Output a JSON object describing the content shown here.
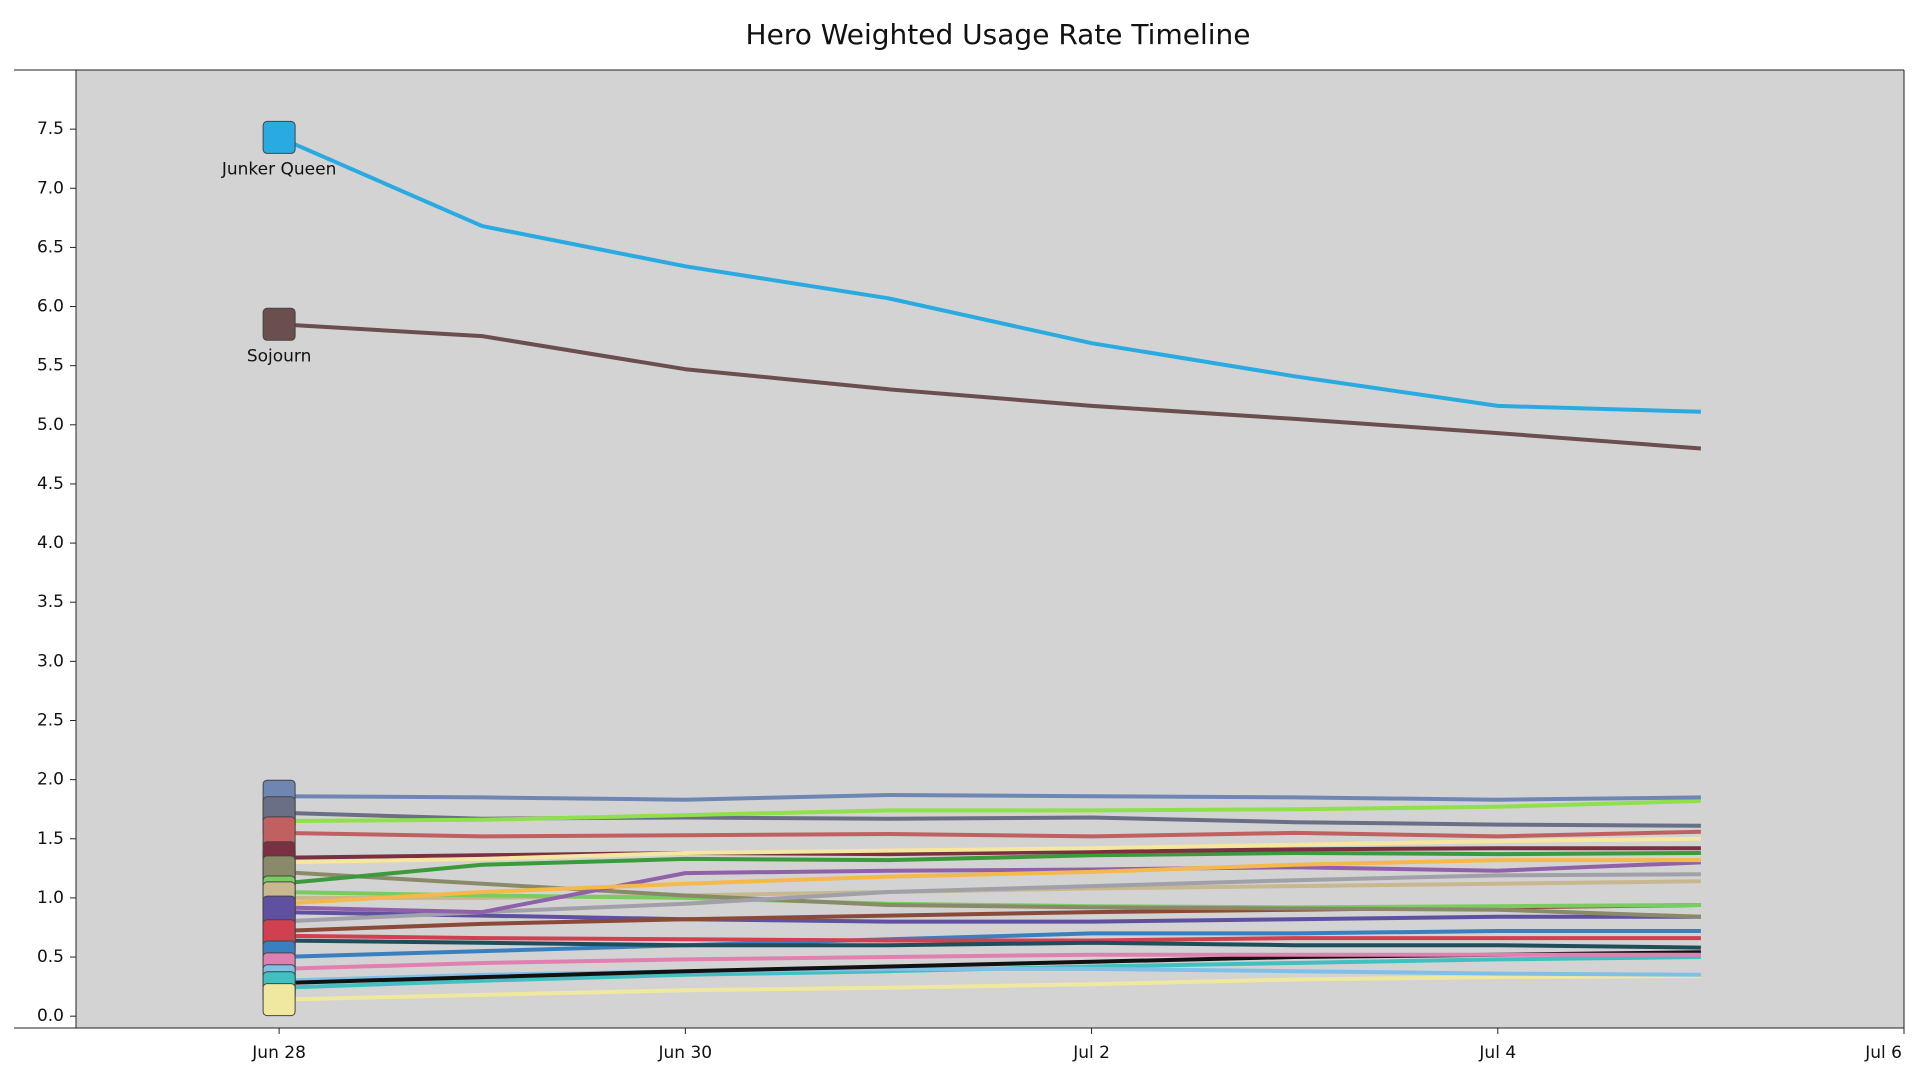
{
  "chart_data": {
    "type": "line",
    "title": "Hero Weighted Usage Rate Timeline",
    "x": [
      "Jun 28",
      "Jun 29",
      "Jun 30",
      "Jul 1",
      "Jul 2",
      "Jul 3",
      "Jul 4",
      "Jul 5"
    ],
    "xlim": [
      "Jun 27",
      "Jul 6"
    ],
    "xticks": [
      "Jun 28",
      "Jun 30",
      "Jul 2",
      "Jul 4",
      "Jul 6"
    ],
    "ylim": [
      -0.1,
      8
    ],
    "yticks": [
      {
        "value": 0,
        "label": "0.0"
      },
      0.5,
      {
        "value": 1,
        "label": "1.0"
      },
      1.5,
      {
        "value": 2,
        "label": "2.0"
      },
      2.5,
      {
        "value": 3,
        "label": "3.0"
      },
      3.5,
      {
        "value": 4,
        "label": "4.0"
      },
      4.5,
      {
        "value": 5,
        "label": "5.0"
      },
      5.5,
      {
        "value": 6,
        "label": "6.0"
      },
      6.5,
      {
        "value": 7,
        "label": "7.0"
      },
      7.5
    ],
    "series": [
      {
        "name": "Junker Queen",
        "color": "#29abe2",
        "values": [
          7.43,
          6.68,
          6.34,
          6.07,
          5.69,
          5.41,
          5.16,
          5.11
        ]
      },
      {
        "name": "Sojourn",
        "color": "#6b4f4f",
        "values": [
          5.85,
          5.75,
          5.47,
          5.3,
          5.16,
          5.05,
          4.93,
          4.8
        ]
      },
      {
        "color": "#6f86b3",
        "values": [
          1.86,
          1.85,
          1.83,
          1.87,
          1.86,
          1.85,
          1.83,
          1.85
        ]
      },
      {
        "color": "#8fe04a",
        "values": [
          1.65,
          1.66,
          1.7,
          1.74,
          1.74,
          1.75,
          1.77,
          1.82
        ]
      },
      {
        "color": "#6b6f86",
        "values": [
          1.72,
          1.67,
          1.68,
          1.67,
          1.68,
          1.64,
          1.62,
          1.61
        ]
      },
      {
        "color": "#c06060",
        "values": [
          1.55,
          1.52,
          1.53,
          1.54,
          1.52,
          1.55,
          1.52,
          1.56
        ]
      },
      {
        "color": "#f5e6a0",
        "values": [
          1.3,
          1.33,
          1.38,
          1.4,
          1.42,
          1.45,
          1.48,
          1.5
        ]
      },
      {
        "color": "#7a3040",
        "values": [
          1.34,
          1.36,
          1.38,
          1.37,
          1.39,
          1.41,
          1.42,
          1.42
        ]
      },
      {
        "color": "#3c9a3c",
        "values": [
          1.12,
          1.28,
          1.33,
          1.32,
          1.36,
          1.38,
          1.37,
          1.38
        ]
      },
      {
        "color": "#f5b84a",
        "values": [
          0.95,
          1.05,
          1.12,
          1.18,
          1.22,
          1.28,
          1.32,
          1.32
        ]
      },
      {
        "color": "#9060a8",
        "values": [
          0.92,
          0.88,
          1.21,
          1.23,
          1.24,
          1.26,
          1.23,
          1.3
        ]
      },
      {
        "color": "#a0a0a8",
        "values": [
          0.8,
          0.88,
          0.95,
          1.05,
          1.1,
          1.15,
          1.19,
          1.2
        ]
      },
      {
        "color": "#8a8a6a",
        "values": [
          1.22,
          1.12,
          1.02,
          0.94,
          0.92,
          0.91,
          0.9,
          0.84
        ]
      },
      {
        "color": "#7acc60",
        "values": [
          1.05,
          1.02,
          1.0,
          0.95,
          0.93,
          0.92,
          0.93,
          0.94
        ]
      },
      {
        "color": "#c8b890",
        "values": [
          1.0,
          1.0,
          1.02,
          1.05,
          1.08,
          1.1,
          1.12,
          1.14
        ]
      },
      {
        "color": "#8a4a3a",
        "values": [
          0.72,
          0.78,
          0.82,
          0.85,
          0.88,
          0.9,
          0.92,
          0.94
        ]
      },
      {
        "color": "#6050a0",
        "values": [
          0.88,
          0.85,
          0.82,
          0.8,
          0.8,
          0.82,
          0.84,
          0.84
        ]
      },
      {
        "color": "#1f4e5a",
        "values": [
          0.64,
          0.62,
          0.6,
          0.6,
          0.62,
          0.6,
          0.6,
          0.58
        ]
      },
      {
        "color": "#d04050",
        "values": [
          0.68,
          0.66,
          0.65,
          0.64,
          0.64,
          0.66,
          0.66,
          0.66
        ]
      },
      {
        "color": "#3a80c0",
        "values": [
          0.5,
          0.55,
          0.6,
          0.65,
          0.7,
          0.7,
          0.72,
          0.72
        ]
      },
      {
        "color": "#e080b0",
        "values": [
          0.4,
          0.45,
          0.48,
          0.5,
          0.52,
          0.52,
          0.52,
          0.52
        ]
      },
      {
        "color": "#111111",
        "values": [
          0.28,
          0.33,
          0.38,
          0.42,
          0.46,
          0.5,
          0.52,
          0.54
        ]
      },
      {
        "color": "#80c0e8",
        "values": [
          0.3,
          0.35,
          0.38,
          0.4,
          0.4,
          0.38,
          0.36,
          0.35
        ]
      },
      {
        "color": "#40c0c0",
        "values": [
          0.24,
          0.3,
          0.35,
          0.38,
          0.42,
          0.45,
          0.48,
          0.5
        ]
      },
      {
        "color": "#f0e8a0",
        "values": [
          0.14,
          0.18,
          0.22,
          0.24,
          0.27,
          0.31,
          0.33,
          0.34
        ]
      }
    ]
  }
}
